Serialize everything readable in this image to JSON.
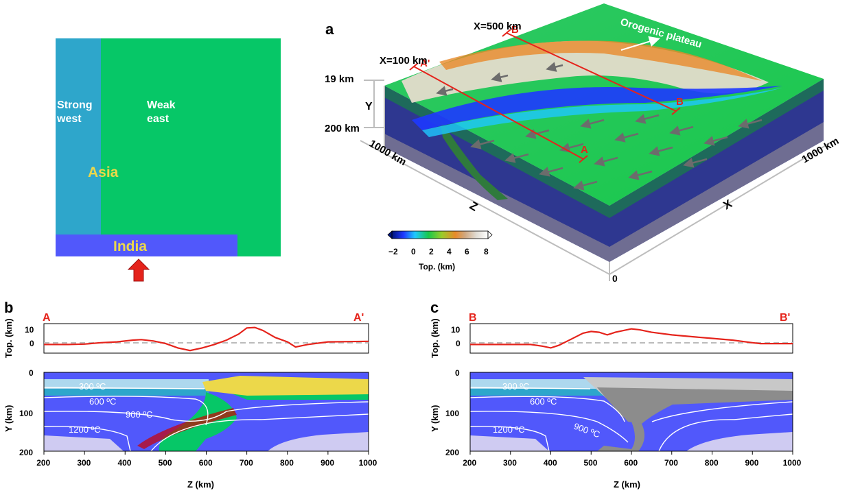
{
  "map_panel": {
    "strong_west_line1": "Strong",
    "strong_west_line2": "west",
    "weak_east_line1": "Weak",
    "weak_east_line2": "east",
    "asia": "Asia",
    "india": "India",
    "colors": {
      "strong_west": "#2ea6cb",
      "weak_east": "#06c767",
      "india": "#5158fb",
      "arrow": "#e5231b"
    }
  },
  "panel_a": {
    "letter": "a",
    "x100": "X=100 km",
    "x500": "X=500 km",
    "plateau": "Orogenic plateau",
    "depth_19": "19 km",
    "depth_200": "200 km",
    "axis_y": "Y",
    "axis_z": "Z",
    "axis_x": "X",
    "z_1000": "1000 km",
    "x_1000": "1000 km",
    "origin": "0",
    "sec_A": "A",
    "sec_Ap": "A'",
    "sec_B": "B",
    "sec_Bp": "B'",
    "colorbar": {
      "ticks": [
        "−2",
        "0",
        "2",
        "4",
        "6",
        "8"
      ],
      "label": "Top. (km)"
    }
  },
  "panel_b": {
    "letter": "b",
    "end_left": "A",
    "end_right": "A'",
    "top_ylabel": "Top. (km)",
    "top_yticks": [
      "10",
      "0"
    ],
    "ylabel": "Y (km)",
    "yticks": [
      "0",
      "100",
      "200"
    ],
    "xticks": [
      "200",
      "300",
      "400",
      "500",
      "600",
      "700",
      "800",
      "900",
      "1000"
    ],
    "xlabel": "Z (km)",
    "isotherms": [
      "300 ºC",
      "600 ºC",
      "900 ºC",
      "1200 ºC"
    ]
  },
  "panel_c": {
    "letter": "c",
    "end_left": "B",
    "end_right": "B'",
    "top_ylabel": "Top. (km)",
    "top_yticks": [
      "10",
      "0"
    ],
    "ylabel": "Y (km)",
    "yticks": [
      "0",
      "100",
      "200"
    ],
    "xticks": [
      "200",
      "300",
      "400",
      "500",
      "600",
      "700",
      "800",
      "900",
      "1000"
    ],
    "xlabel": "Z (km)",
    "isotherms": [
      "300 ºC",
      "600 ºC",
      "900 ºC",
      "1200 ºC"
    ]
  },
  "chart_data": [
    {
      "type": "line",
      "title": "A–A'",
      "xlabel": "",
      "ylabel": "Top. (km)",
      "xlim": [
        200,
        1000
      ],
      "ylim": [
        -5,
        12
      ],
      "series": [
        {
          "x": [
            200,
            260,
            300,
            340,
            380,
            420,
            440,
            470,
            500,
            530,
            560,
            590,
            620,
            650,
            680,
            700,
            720,
            740,
            770,
            800,
            820,
            850,
            900,
            1000
          ],
          "y": [
            0,
            0,
            0.2,
            1,
            1.5,
            2.5,
            2.8,
            2,
            0.5,
            -2,
            -3.5,
            -2,
            0,
            2.5,
            6,
            9.5,
            9.8,
            8,
            4,
            1.5,
            -1.5,
            0,
            1.5,
            1.8
          ]
        }
      ]
    },
    {
      "type": "line",
      "title": "B–B'",
      "xlabel": "",
      "ylabel": "Top. (km)",
      "xlim": [
        200,
        1000
      ],
      "ylim": [
        -5,
        12
      ],
      "series": [
        {
          "x": [
            200,
            300,
            350,
            380,
            400,
            420,
            450,
            480,
            500,
            520,
            540,
            560,
            600,
            620,
            650,
            700,
            750,
            800,
            850,
            900,
            920,
            1000
          ],
          "y": [
            0,
            0,
            0,
            -1,
            -2,
            -0.5,
            3,
            6.5,
            7.5,
            7,
            5.5,
            7,
            9,
            8.5,
            7,
            5.5,
            4.5,
            3.5,
            2.5,
            1,
            0.5,
            0.5
          ]
        }
      ]
    }
  ]
}
